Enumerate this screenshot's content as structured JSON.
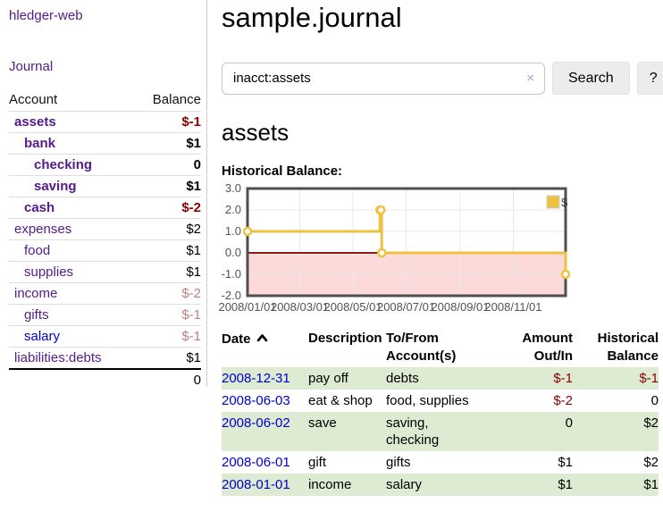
{
  "app": {
    "brand": "hledger-web",
    "nav_journal": "Journal"
  },
  "colors": {
    "link_purple": "#551a8b",
    "link_blue": "#0000cc",
    "negative_strong": "#8b0000",
    "negative_soft": "#c17d7d",
    "row_green": "#dcebd2",
    "series_yellow": "#edc240",
    "negative_region_pink": "#fcdada",
    "zero_line_red": "#8b1a1a",
    "chart_border": "#4f4f4f",
    "grid": "#e8e8e8",
    "axis_text": "#545454"
  },
  "sidebar": {
    "headers": {
      "account": "Account",
      "balance": "Balance"
    },
    "accounts": [
      {
        "name": "assets",
        "level": 1,
        "bold": true,
        "balance": "$-1",
        "neg": "strong"
      },
      {
        "name": "bank",
        "level": 2,
        "bold": true,
        "balance": "$1"
      },
      {
        "name": "checking",
        "level": 3,
        "bold": true,
        "balance": "0"
      },
      {
        "name": "saving",
        "level": 3,
        "bold": true,
        "balance": "$1"
      },
      {
        "name": "cash",
        "level": 2,
        "bold": true,
        "balance": "$-2",
        "neg": "strong"
      },
      {
        "name": "expenses",
        "level": 1,
        "bold": false,
        "balance": "$2"
      },
      {
        "name": "food",
        "level": 2,
        "bold": false,
        "balance": "$1"
      },
      {
        "name": "supplies",
        "level": 2,
        "bold": false,
        "balance": "$1"
      },
      {
        "name": "income",
        "level": 1,
        "bold": false,
        "balance": "$-2",
        "neg": "soft"
      },
      {
        "name": "gifts",
        "level": 2,
        "bold": false,
        "balance": "$-1",
        "neg": "soft"
      },
      {
        "name": "salary",
        "level": 2,
        "bold": false,
        "balance": "$-1",
        "neg": "soft",
        "link_color": "blue"
      },
      {
        "name": "liabilities:debts",
        "level": 1,
        "bold": false,
        "balance": "$1"
      }
    ],
    "total": "0"
  },
  "main": {
    "title": "sample.journal",
    "search": {
      "value": "inacct:assets",
      "clear_icon": "×",
      "button_label": "Search",
      "help_label": "?"
    },
    "heading": "assets",
    "chart_label": "Historical Balance:"
  },
  "chart_data": {
    "type": "line",
    "step": true,
    "title": "Historical Balance:",
    "legend": {
      "label": "$",
      "position": "top-right"
    },
    "ylim": [
      -2,
      3
    ],
    "yticks": [
      3,
      2,
      1,
      0,
      -1,
      -2
    ],
    "ytick_labels": [
      "3.0",
      "2.0",
      "1.0",
      "0.0",
      "-1.0",
      "-2.0"
    ],
    "x_range_days": [
      0,
      365
    ],
    "xticks": [
      {
        "day": 0,
        "label": "2008/01/01"
      },
      {
        "day": 60,
        "label": "2008/03/01"
      },
      {
        "day": 121,
        "label": "2008/05/01"
      },
      {
        "day": 182,
        "label": "2008/07/01"
      },
      {
        "day": 244,
        "label": "2008/09/01"
      },
      {
        "day": 305,
        "label": "2008/11/01"
      }
    ],
    "series": [
      {
        "name": "$",
        "color": "#edc240",
        "points": [
          {
            "date": "2008-01-01",
            "day": 0,
            "y": 1
          },
          {
            "date": "2008-06-01",
            "day": 152,
            "y": 2
          },
          {
            "date": "2008-06-02",
            "day": 153,
            "y": 2
          },
          {
            "date": "2008-06-03",
            "day": 154,
            "y": 0
          },
          {
            "date": "2008-12-31",
            "day": 365,
            "y": -1
          }
        ]
      }
    ]
  },
  "register": {
    "headers": {
      "date": "Date",
      "description": "Description",
      "accounts": "To/From Account(s)",
      "amount": "Amount Out/In",
      "balance": "Historical Balance"
    },
    "rows": [
      {
        "date": "2008-12-31",
        "description": "pay off",
        "accounts": "debts",
        "amount": "$-1",
        "amount_neg": true,
        "balance": "$-1",
        "balance_neg": true,
        "shaded": true
      },
      {
        "date": "2008-06-03",
        "description": "eat & shop",
        "accounts": "food, supplies",
        "amount": "$-2",
        "amount_neg": true,
        "balance": "0",
        "balance_neg": false,
        "shaded": false
      },
      {
        "date": "2008-06-02",
        "description": "save",
        "accounts": "saving,\nchecking",
        "amount": "0",
        "amount_neg": false,
        "balance": "$2",
        "balance_neg": false,
        "shaded": true
      },
      {
        "date": "2008-06-01",
        "description": "gift",
        "accounts": "gifts",
        "amount": "$1",
        "amount_neg": false,
        "balance": "$2",
        "balance_neg": false,
        "shaded": false
      },
      {
        "date": "2008-01-01",
        "description": "income",
        "accounts": "salary",
        "amount": "$1",
        "amount_neg": false,
        "balance": "$1",
        "balance_neg": false,
        "shaded": true
      }
    ]
  }
}
